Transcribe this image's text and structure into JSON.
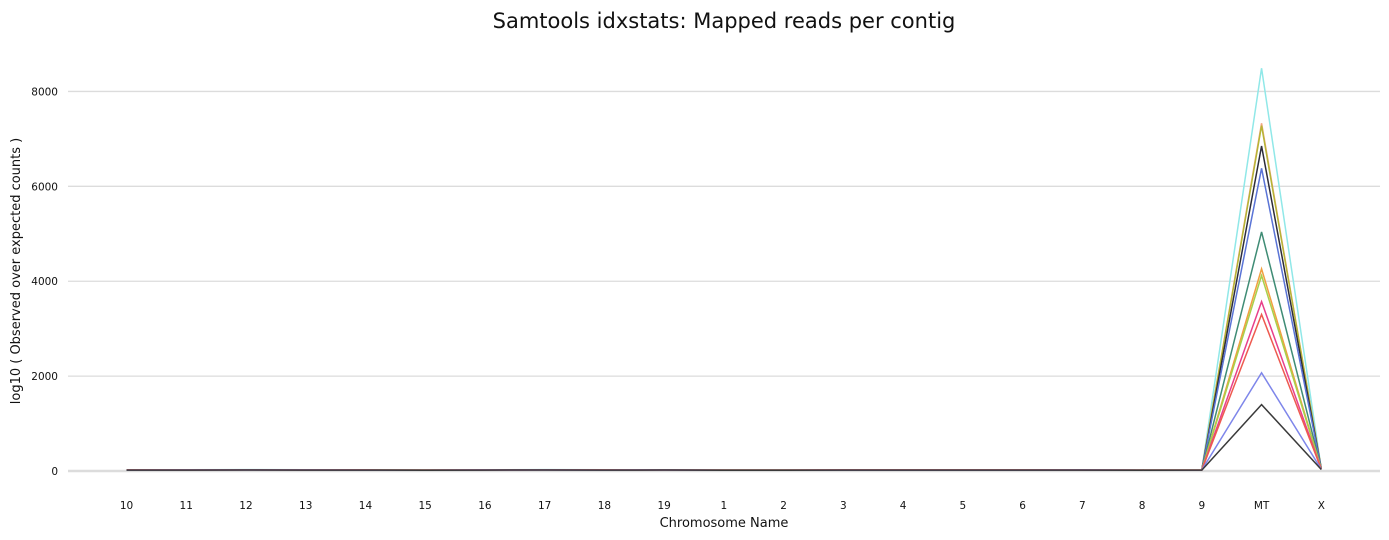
{
  "chart_data": {
    "type": "line",
    "title": "Samtools idxstats: Mapped reads per contig",
    "xlabel": "Chromosome Name",
    "ylabel": "log10 ( Observed over expected counts )",
    "categories": [
      "10",
      "11",
      "12",
      "13",
      "14",
      "15",
      "16",
      "17",
      "18",
      "19",
      "1",
      "2",
      "3",
      "4",
      "5",
      "6",
      "7",
      "8",
      "9",
      "MT",
      "X"
    ],
    "y_ticks": [
      "0",
      "2000",
      "4000",
      "6000",
      "8000"
    ],
    "y_tick_values": [
      0,
      2000,
      4000,
      6000,
      8000
    ],
    "ylim": [
      0,
      9000
    ],
    "grid": true,
    "legend": "none",
    "series": [
      {
        "color": "#90e8e8",
        "values": [
          25,
          26,
          28,
          26,
          25,
          24,
          26,
          28,
          25,
          27,
          24,
          24,
          25,
          25,
          25,
          25,
          26,
          24,
          26,
          8490,
          50
        ]
      },
      {
        "color": "#f4a582",
        "values": [
          24,
          25,
          27,
          25,
          24,
          23,
          25,
          27,
          24,
          26,
          23,
          23,
          24,
          24,
          24,
          24,
          25,
          23,
          25,
          7330,
          48
        ]
      },
      {
        "color": "#b5b535",
        "values": [
          24,
          25,
          27,
          25,
          24,
          23,
          25,
          27,
          24,
          26,
          23,
          23,
          24,
          24,
          24,
          24,
          25,
          23,
          25,
          7280,
          48
        ]
      },
      {
        "color": "#2d2d3a",
        "values": [
          23,
          24,
          26,
          24,
          23,
          22,
          24,
          26,
          23,
          25,
          22,
          22,
          23,
          23,
          23,
          23,
          24,
          22,
          24,
          6850,
          46
        ]
      },
      {
        "color": "#5a74d6",
        "values": [
          23,
          24,
          26,
          24,
          23,
          22,
          24,
          26,
          23,
          25,
          22,
          22,
          23,
          23,
          23,
          23,
          24,
          22,
          24,
          6380,
          45
        ]
      },
      {
        "color": "#3f8c75",
        "values": [
          22,
          23,
          25,
          23,
          22,
          21,
          23,
          25,
          22,
          24,
          21,
          21,
          22,
          22,
          22,
          22,
          23,
          21,
          23,
          5040,
          42
        ]
      },
      {
        "color": "#f0a040",
        "values": [
          21,
          22,
          24,
          22,
          21,
          20,
          22,
          24,
          21,
          23,
          20,
          20,
          21,
          21,
          21,
          21,
          22,
          20,
          22,
          4260,
          40
        ]
      },
      {
        "color": "#a8d04a",
        "values": [
          21,
          22,
          24,
          22,
          21,
          20,
          22,
          24,
          21,
          23,
          20,
          20,
          21,
          21,
          21,
          21,
          22,
          20,
          22,
          4120,
          40
        ]
      },
      {
        "color": "#e8408a",
        "values": [
          20,
          21,
          23,
          21,
          20,
          19,
          21,
          23,
          20,
          22,
          19,
          19,
          20,
          20,
          20,
          20,
          21,
          19,
          21,
          3570,
          38
        ]
      },
      {
        "color": "#ee5a50",
        "values": [
          20,
          21,
          23,
          21,
          20,
          19,
          21,
          23,
          20,
          22,
          19,
          19,
          20,
          20,
          20,
          20,
          21,
          19,
          21,
          3300,
          37
        ]
      },
      {
        "color": "#7e86ea",
        "values": [
          19,
          20,
          22,
          20,
          19,
          18,
          20,
          22,
          19,
          21,
          18,
          18,
          19,
          19,
          19,
          19,
          20,
          18,
          20,
          2070,
          34
        ]
      },
      {
        "color": "#3a3a3a",
        "values": [
          18,
          19,
          21,
          19,
          18,
          17,
          19,
          21,
          18,
          20,
          17,
          17,
          18,
          18,
          18,
          18,
          19,
          17,
          19,
          1400,
          32
        ]
      }
    ]
  }
}
